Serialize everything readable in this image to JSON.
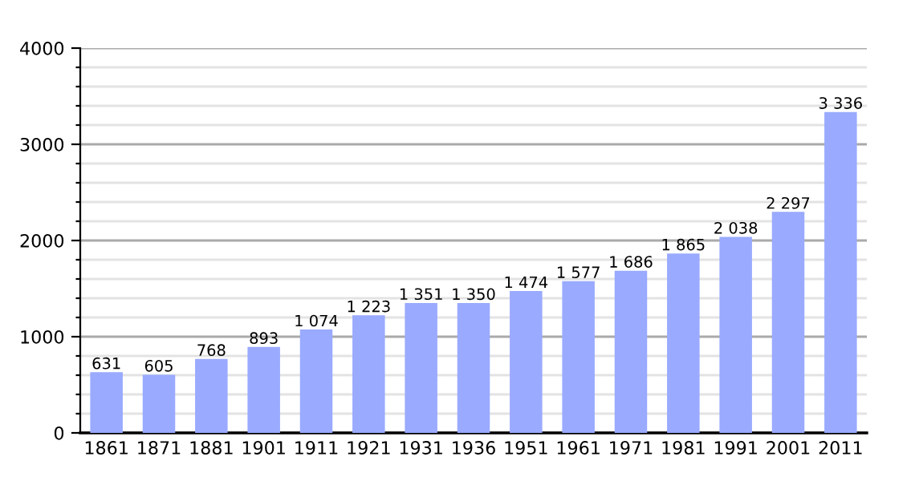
{
  "chart_data": {
    "type": "bar",
    "categories": [
      "1861",
      "1871",
      "1881",
      "1901",
      "1911",
      "1921",
      "1931",
      "1936",
      "1951",
      "1961",
      "1971",
      "1981",
      "1991",
      "2001",
      "2011"
    ],
    "values": [
      631,
      605,
      768,
      893,
      1074,
      1223,
      1351,
      1350,
      1474,
      1577,
      1686,
      1865,
      2038,
      2297,
      3336
    ],
    "value_labels": [
      "631",
      "605",
      "768",
      "893",
      "1 074",
      "1 223",
      "1 351",
      "1 350",
      "1 474",
      "1 577",
      "1 686",
      "1 865",
      "2 038",
      "2 297",
      "3 336"
    ],
    "color": "#99aaff",
    "ylim": [
      0,
      4000
    ],
    "yticks": [
      0,
      {
        "value": 200,
        "label": null
      },
      {
        "value": 400,
        "label": null
      },
      {
        "value": 600,
        "label": null
      },
      {
        "value": 800,
        "label": null
      },
      1000,
      {
        "value": 1200,
        "label": null
      },
      {
        "value": 1400,
        "label": null
      },
      {
        "value": 1600,
        "label": null
      },
      {
        "value": 1800,
        "label": null
      },
      2000,
      {
        "value": 2200,
        "label": null
      },
      {
        "value": 2400,
        "label": null
      },
      {
        "value": 2600,
        "label": null
      },
      {
        "value": 2800,
        "label": null
      },
      3000,
      {
        "value": 3200,
        "label": null
      },
      {
        "value": 3400,
        "label": null
      },
      {
        "value": 3600,
        "label": null
      },
      {
        "value": 3800,
        "label": null
      },
      4000
    ],
    "grid": "y"
  }
}
